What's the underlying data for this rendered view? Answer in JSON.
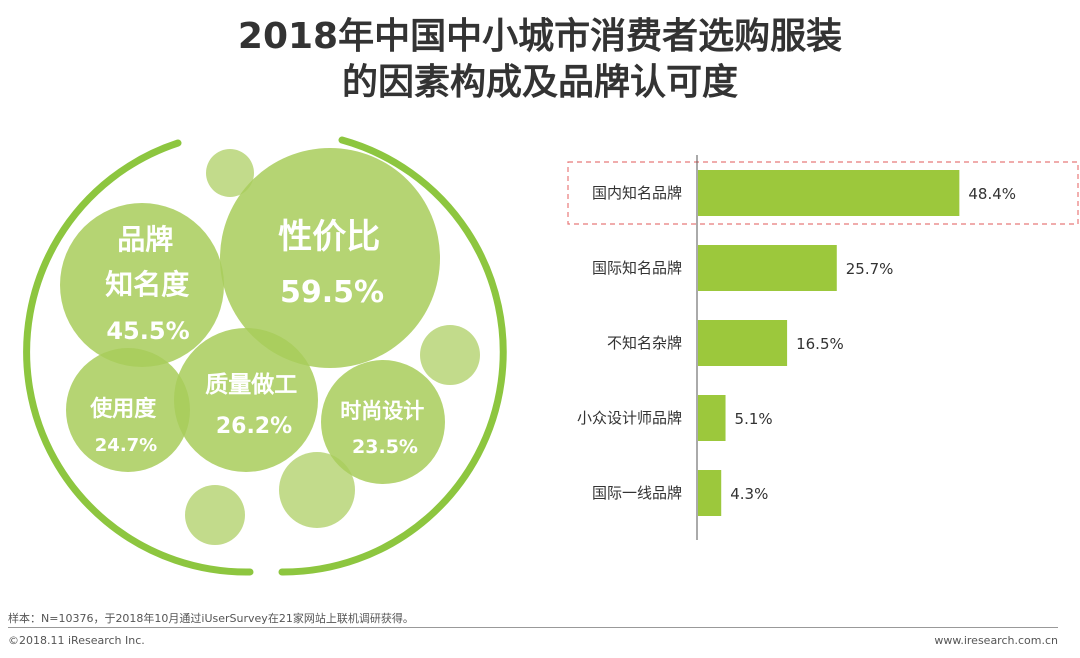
{
  "title_line1": "2018年中国中小城市消费者选购服装",
  "title_line2": "的因素构成及品牌认可度",
  "colors": {
    "bar": "#9cc83c",
    "bubble": "#a8cc5a",
    "ring": "#8dc63f",
    "highlight_border": "#e87a7a",
    "axis": "#555555"
  },
  "bubble_chart": {
    "ring_color_name": "green-arc-ring",
    "factors": [
      {
        "lines": [
          "性价比",
          "59.5%"
        ],
        "name": "性价比",
        "value": 59.5
      },
      {
        "lines": [
          "品牌",
          "知名度",
          "45.5%"
        ],
        "name": "品牌知名度",
        "value": 45.5
      },
      {
        "lines": [
          "质量做工",
          "26.2%"
        ],
        "name": "质量做工",
        "value": 26.2
      },
      {
        "lines": [
          "使用度",
          "24.7%"
        ],
        "name": "使用度",
        "value": 24.7
      },
      {
        "lines": [
          "时尚设计",
          "23.5%"
        ],
        "name": "时尚设计",
        "value": 23.5
      }
    ]
  },
  "chart_data": {
    "type": "bar",
    "orientation": "horizontal",
    "title": "2018年中国中小城市消费者选购服装的因素构成及品牌认可度",
    "categories": [
      "国内知名品牌",
      "国际知名品牌",
      "不知名杂牌",
      "小众设计师品牌",
      "国际一线品牌"
    ],
    "values": [
      48.4,
      25.7,
      16.5,
      5.1,
      4.3
    ],
    "value_labels": [
      "48.4%",
      "25.7%",
      "16.5%",
      "5.1%",
      "4.3%"
    ],
    "highlighted_index": 0,
    "xlim": [
      0,
      100
    ]
  },
  "footer": {
    "note": "样本：N=10376，于2018年10月通过iUserSurvey在21家网站上联机调研获得。",
    "copyright": "©2018.11 iResearch Inc.",
    "website": "www.iresearch.com.cn"
  }
}
